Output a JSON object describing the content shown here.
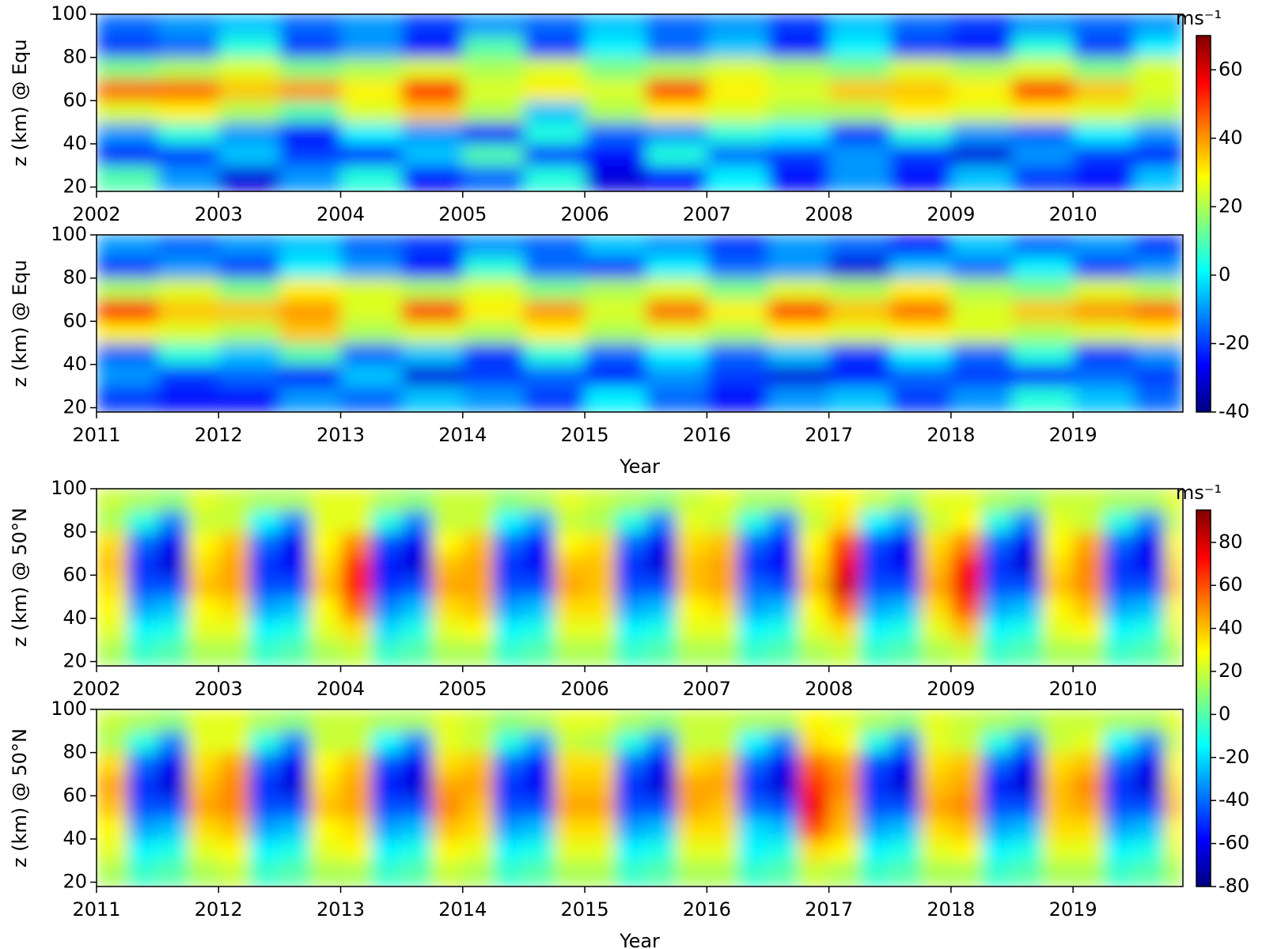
{
  "chart_data": [
    {
      "type": "heatmap",
      "ylabel": "z (km) @ Equ",
      "colormap": "jet",
      "xlim": [
        2002,
        2010.9
      ],
      "xticks": [
        2002,
        2003,
        2004,
        2005,
        2006,
        2007,
        2008,
        2009,
        2010
      ],
      "ylim": [
        18,
        100
      ],
      "yticks": [
        20,
        40,
        60,
        80,
        100
      ],
      "clim": [
        -40,
        70
      ],
      "colorbar": {
        "label": "ms⁻¹",
        "ticks": [
          -40,
          -20,
          0,
          20,
          40,
          60
        ]
      },
      "x": [
        2002.25,
        2002.75,
        2003.25,
        2003.75,
        2004.25,
        2004.75,
        2005.25,
        2005.75,
        2006.25,
        2006.75,
        2007.25,
        2007.75,
        2008.25,
        2008.75,
        2009.25,
        2009.75,
        2010.25,
        2010.75
      ],
      "y": [
        25,
        35,
        45,
        55,
        65,
        75,
        85,
        95
      ],
      "z": [
        [
          10,
          -10,
          -30,
          -10,
          5,
          -25,
          -15,
          5,
          -30,
          -25,
          0,
          -25,
          -10,
          -25,
          -5,
          -20,
          -25,
          -5
        ],
        [
          -25,
          -20,
          -5,
          -20,
          -25,
          -5,
          10,
          -20,
          -25,
          5,
          -15,
          -20,
          -10,
          -20,
          -30,
          -10,
          -20,
          -25
        ],
        [
          -10,
          5,
          -10,
          -25,
          0,
          -10,
          -25,
          5,
          -15,
          -10,
          5,
          0,
          -20,
          5,
          -10,
          -15,
          0,
          -10
        ],
        [
          25,
          30,
          20,
          10,
          25,
          35,
          20,
          -5,
          20,
          30,
          25,
          20,
          20,
          30,
          25,
          30,
          25,
          20
        ],
        [
          45,
          45,
          35,
          40,
          30,
          55,
          25,
          30,
          25,
          50,
          30,
          25,
          35,
          35,
          30,
          50,
          35,
          25
        ],
        [
          15,
          20,
          25,
          15,
          20,
          25,
          20,
          25,
          15,
          20,
          25,
          20,
          15,
          25,
          20,
          25,
          15,
          25
        ],
        [
          -20,
          -15,
          5,
          -20,
          -10,
          -25,
          10,
          -20,
          0,
          -15,
          -5,
          -25,
          0,
          -20,
          -25,
          5,
          -20,
          0
        ],
        [
          -15,
          -10,
          -5,
          -15,
          -10,
          -20,
          -10,
          -15,
          -5,
          -15,
          -10,
          -20,
          -5,
          -15,
          -20,
          -10,
          -15,
          -10
        ]
      ]
    },
    {
      "type": "heatmap",
      "ylabel": "z (km) @ Equ",
      "xlabel": "Year",
      "colormap": "jet",
      "xlim": [
        2011,
        2019.9
      ],
      "xticks": [
        2011,
        2012,
        2013,
        2014,
        2015,
        2016,
        2017,
        2018,
        2019
      ],
      "ylim": [
        18,
        100
      ],
      "yticks": [
        20,
        40,
        60,
        80,
        100
      ],
      "clim": [
        -40,
        70
      ],
      "x": [
        2011.25,
        2011.75,
        2012.25,
        2012.75,
        2013.25,
        2013.75,
        2014.25,
        2014.75,
        2015.25,
        2015.75,
        2016.25,
        2016.75,
        2017.25,
        2017.75,
        2018.25,
        2018.75,
        2019.25,
        2019.75
      ],
      "y": [
        25,
        35,
        45,
        55,
        65,
        75,
        85,
        95
      ],
      "z": [
        [
          -20,
          -25,
          -25,
          -10,
          -15,
          -5,
          -10,
          -20,
          0,
          -15,
          -25,
          -10,
          -5,
          -20,
          -10,
          5,
          -5,
          -15
        ],
        [
          -10,
          -20,
          -15,
          -25,
          -5,
          -30,
          -20,
          -15,
          -25,
          -10,
          -20,
          -30,
          -25,
          -15,
          -20,
          -25,
          -15,
          -20
        ],
        [
          -15,
          5,
          -5,
          10,
          -15,
          -5,
          -20,
          5,
          -15,
          0,
          -15,
          -5,
          -20,
          0,
          -15,
          5,
          -20,
          -10
        ],
        [
          30,
          25,
          20,
          35,
          20,
          25,
          20,
          30,
          20,
          25,
          20,
          30,
          25,
          30,
          25,
          20,
          25,
          30
        ],
        [
          55,
          35,
          35,
          40,
          25,
          50,
          30,
          40,
          25,
          45,
          30,
          50,
          35,
          45,
          25,
          35,
          40,
          45
        ],
        [
          20,
          25,
          15,
          30,
          25,
          20,
          25,
          15,
          20,
          25,
          15,
          25,
          20,
          30,
          20,
          15,
          25,
          20
        ],
        [
          -20,
          -10,
          -20,
          0,
          -10,
          -25,
          5,
          -15,
          -20,
          0,
          -15,
          -10,
          -30,
          -5,
          -15,
          0,
          -20,
          -10
        ],
        [
          -10,
          -15,
          -10,
          -5,
          -15,
          -20,
          -10,
          -15,
          -5,
          -10,
          -20,
          -10,
          -15,
          -25,
          -5,
          -15,
          -10,
          -20
        ]
      ]
    },
    {
      "type": "heatmap",
      "ylabel": "z (km) @ 50°N",
      "colormap": "jet",
      "xlim": [
        2002,
        2010.9
      ],
      "xticks": [
        2002,
        2003,
        2004,
        2005,
        2006,
        2007,
        2008,
        2009,
        2010
      ],
      "ylim": [
        18,
        100
      ],
      "yticks": [
        20,
        40,
        60,
        80,
        100
      ],
      "clim": [
        -80,
        95
      ],
      "colorbar": {
        "label": "ms⁻¹",
        "ticks": [
          -80,
          -60,
          -40,
          -20,
          0,
          20,
          40,
          60,
          80
        ]
      },
      "x": [
        2002.125,
        2002.375,
        2002.625,
        2002.875,
        2003.125,
        2003.375,
        2003.625,
        2003.875,
        2004.125,
        2004.375,
        2004.625,
        2004.875,
        2005.125,
        2005.375,
        2005.625,
        2005.875,
        2006.125,
        2006.375,
        2006.625,
        2006.875,
        2007.125,
        2007.375,
        2007.625,
        2007.875,
        2008.125,
        2008.375,
        2008.625,
        2008.875,
        2009.125,
        2009.375,
        2009.625,
        2009.875,
        2010.125,
        2010.375,
        2010.625,
        2010.875
      ],
      "y": [
        25,
        35,
        45,
        55,
        65,
        75,
        85,
        95
      ],
      "z": [
        [
          15,
          -5,
          0,
          15,
          15,
          -5,
          0,
          15,
          20,
          -5,
          0,
          15,
          15,
          -5,
          0,
          15,
          15,
          -5,
          0,
          15,
          15,
          -5,
          0,
          15,
          20,
          -5,
          0,
          15,
          20,
          -5,
          0,
          15,
          15,
          -5,
          0,
          15
        ],
        [
          25,
          -15,
          -10,
          25,
          25,
          -15,
          -10,
          25,
          35,
          -20,
          -10,
          25,
          30,
          -15,
          -10,
          25,
          25,
          -15,
          -10,
          25,
          25,
          -15,
          -10,
          25,
          35,
          -15,
          -10,
          25,
          40,
          -15,
          -10,
          25,
          30,
          -15,
          -10,
          25
        ],
        [
          30,
          -30,
          -25,
          30,
          35,
          -30,
          -25,
          30,
          55,
          -35,
          -25,
          35,
          40,
          -30,
          -25,
          35,
          35,
          -30,
          -25,
          30,
          35,
          -30,
          -25,
          30,
          55,
          -30,
          -25,
          35,
          60,
          -30,
          -25,
          30,
          40,
          -30,
          -25,
          30
        ],
        [
          35,
          -45,
          -45,
          40,
          45,
          -45,
          -45,
          40,
          70,
          -50,
          -45,
          45,
          45,
          -45,
          -45,
          45,
          40,
          -45,
          -45,
          40,
          45,
          -40,
          -45,
          40,
          80,
          -45,
          -45,
          45,
          75,
          -45,
          -45,
          40,
          50,
          -45,
          -45,
          40
        ],
        [
          40,
          -50,
          -65,
          35,
          45,
          -50,
          -60,
          35,
          65,
          -55,
          -65,
          40,
          45,
          -50,
          -60,
          40,
          40,
          -50,
          -65,
          40,
          45,
          -50,
          -60,
          35,
          75,
          -50,
          -60,
          40,
          70,
          -50,
          -65,
          35,
          50,
          -50,
          -60,
          35
        ],
        [
          35,
          -40,
          -60,
          30,
          40,
          -40,
          -60,
          30,
          50,
          -45,
          -60,
          30,
          40,
          -40,
          -55,
          30,
          35,
          -40,
          -60,
          35,
          40,
          -40,
          -55,
          30,
          60,
          -45,
          -60,
          35,
          50,
          -40,
          -60,
          30,
          45,
          -40,
          -60,
          30
        ],
        [
          15,
          -10,
          -35,
          20,
          20,
          -15,
          -35,
          25,
          25,
          -10,
          -35,
          20,
          20,
          -15,
          -30,
          20,
          15,
          -10,
          -35,
          25,
          20,
          -10,
          -35,
          20,
          35,
          -15,
          -30,
          20,
          30,
          -10,
          -35,
          25,
          20,
          -10,
          -35,
          20
        ],
        [
          20,
          15,
          10,
          25,
          20,
          15,
          15,
          25,
          25,
          15,
          10,
          20,
          20,
          10,
          15,
          25,
          20,
          15,
          10,
          20,
          25,
          15,
          15,
          25,
          30,
          20,
          10,
          25,
          25,
          15,
          10,
          20,
          20,
          15,
          15,
          25
        ]
      ]
    },
    {
      "type": "heatmap",
      "ylabel": "z (km) @ 50°N",
      "xlabel": "Year",
      "colormap": "jet",
      "xlim": [
        2011,
        2019.9
      ],
      "xticks": [
        2011,
        2012,
        2013,
        2014,
        2015,
        2016,
        2017,
        2018,
        2019
      ],
      "ylim": [
        18,
        100
      ],
      "yticks": [
        20,
        40,
        60,
        80,
        100
      ],
      "clim": [
        -80,
        95
      ],
      "x": [
        2011.125,
        2011.375,
        2011.625,
        2011.875,
        2012.125,
        2012.375,
        2012.625,
        2012.875,
        2013.125,
        2013.375,
        2013.625,
        2013.875,
        2014.125,
        2014.375,
        2014.625,
        2014.875,
        2015.125,
        2015.375,
        2015.625,
        2015.875,
        2016.125,
        2016.375,
        2016.625,
        2016.875,
        2017.125,
        2017.375,
        2017.625,
        2017.875,
        2018.125,
        2018.375,
        2018.625,
        2018.875,
        2019.125,
        2019.375,
        2019.625,
        2019.875
      ],
      "y": [
        25,
        35,
        45,
        55,
        65,
        75,
        85,
        95
      ],
      "z": [
        [
          15,
          -5,
          0,
          15,
          20,
          -5,
          0,
          15,
          15,
          -5,
          0,
          20,
          15,
          -5,
          0,
          15,
          15,
          -5,
          0,
          15,
          15,
          -5,
          0,
          20,
          15,
          -5,
          0,
          15,
          15,
          -5,
          0,
          15,
          15,
          -5,
          0,
          15
        ],
        [
          25,
          -15,
          -10,
          25,
          30,
          -15,
          -10,
          25,
          30,
          -15,
          -10,
          30,
          25,
          -15,
          -10,
          25,
          25,
          -15,
          -10,
          25,
          25,
          -15,
          -10,
          35,
          30,
          -15,
          -10,
          25,
          30,
          -15,
          -10,
          25,
          25,
          -15,
          -10,
          25
        ],
        [
          30,
          -30,
          -25,
          35,
          40,
          -30,
          -25,
          30,
          35,
          -30,
          -25,
          40,
          35,
          -30,
          -25,
          35,
          35,
          -30,
          -25,
          35,
          35,
          -20,
          -25,
          60,
          40,
          -30,
          -25,
          35,
          40,
          -30,
          -25,
          35,
          35,
          -30,
          -25,
          30
        ],
        [
          40,
          -45,
          -45,
          45,
          50,
          -45,
          -45,
          40,
          45,
          -45,
          -45,
          50,
          40,
          -45,
          -45,
          45,
          45,
          -45,
          -45,
          45,
          40,
          -40,
          -45,
          75,
          45,
          -45,
          -45,
          45,
          50,
          -45,
          -45,
          40,
          45,
          -45,
          -45,
          40
        ],
        [
          45,
          -50,
          -65,
          40,
          50,
          -50,
          -65,
          35,
          45,
          -55,
          -65,
          45,
          45,
          -50,
          -60,
          40,
          40,
          -50,
          -65,
          45,
          45,
          -50,
          -65,
          65,
          50,
          -50,
          -65,
          40,
          45,
          -55,
          -65,
          40,
          50,
          -50,
          -65,
          35
        ],
        [
          35,
          -40,
          -60,
          35,
          45,
          -40,
          -60,
          30,
          40,
          -45,
          -60,
          35,
          40,
          -40,
          -55,
          35,
          35,
          -40,
          -60,
          35,
          40,
          -40,
          -60,
          55,
          45,
          -45,
          -60,
          35,
          40,
          -40,
          -60,
          35,
          40,
          -40,
          -60,
          30
        ],
        [
          15,
          -10,
          -35,
          25,
          25,
          -10,
          -35,
          20,
          20,
          -15,
          -35,
          25,
          20,
          -10,
          -30,
          20,
          15,
          -10,
          -35,
          20,
          20,
          -15,
          -35,
          35,
          30,
          -10,
          -35,
          25,
          20,
          -10,
          -35,
          20,
          25,
          -15,
          -35,
          20
        ],
        [
          20,
          15,
          10,
          25,
          25,
          15,
          10,
          20,
          20,
          15,
          15,
          25,
          20,
          10,
          15,
          25,
          25,
          15,
          10,
          20,
          20,
          15,
          15,
          30,
          25,
          15,
          10,
          25,
          20,
          15,
          10,
          20,
          20,
          15,
          15,
          25
        ]
      ]
    }
  ]
}
